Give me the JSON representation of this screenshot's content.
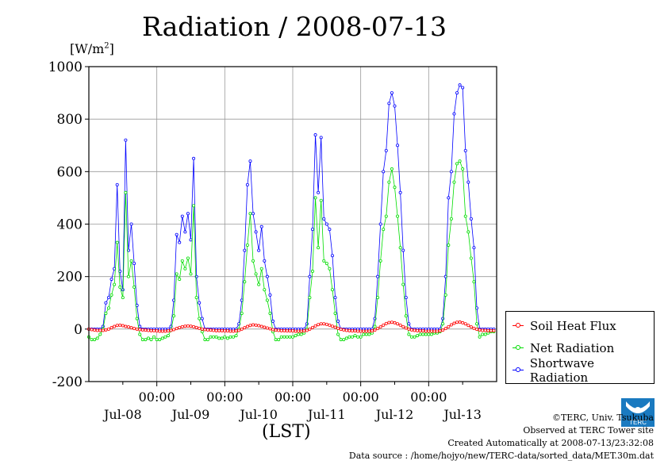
{
  "title": "Radiation / 2008-07-13",
  "unit_label": "[W/m",
  "unit_sup": "2",
  "unit_close": "]",
  "x_axis_title": "(LST)",
  "legend": [
    {
      "label": "Soil Heat Flux",
      "color": "#ff0000"
    },
    {
      "label": "Net Radiation",
      "color": "#00ff00"
    },
    {
      "label": "Shortwave Radiation",
      "color": "#0000ff"
    }
  ],
  "credits": {
    "copyright": "©TERC, Univ. Tsukuba",
    "observed": "Observed at TERC Tower site",
    "created": "Created Automatically at 2008-07-13/23:32:08",
    "source": "Data source : /home/hojyo/new/TERC-data/sorted_data/MET.30m.dat"
  },
  "logo_text": "TERC",
  "chart_data": {
    "type": "line",
    "title": "Radiation / 2008-07-13",
    "ylabel": "[W/m2]",
    "xlabel": "(LST)",
    "ylim": [
      -200,
      1000
    ],
    "yticks": [
      -200,
      0,
      200,
      400,
      600,
      800,
      1000
    ],
    "xlim_days": [
      0,
      6
    ],
    "x_ticks": [
      {
        "pos": 1,
        "label": "00:00"
      },
      {
        "pos": 2,
        "label": "00:00"
      },
      {
        "pos": 3,
        "label": "00:00"
      },
      {
        "pos": 4,
        "label": "00:00"
      },
      {
        "pos": 5,
        "label": "00:00"
      }
    ],
    "day_labels": [
      "Jul-08",
      "Jul-09",
      "Jul-10",
      "Jul-11",
      "Jul-12",
      "Jul-13"
    ],
    "grid": true,
    "legend_position": "outside-right-bottom",
    "series": [
      {
        "name": "Shortwave Radiation",
        "color": "#0000ff",
        "start_day": 0.0,
        "step_hours": 1,
        "values": [
          0,
          0,
          0,
          0,
          0,
          10,
          100,
          120,
          190,
          230,
          550,
          220,
          150,
          720,
          300,
          400,
          250,
          90,
          10,
          0,
          0,
          0,
          0,
          0,
          0,
          0,
          0,
          0,
          0,
          10,
          110,
          360,
          330,
          430,
          370,
          440,
          340,
          650,
          200,
          100,
          40,
          0,
          0,
          0,
          0,
          0,
          0,
          0,
          0,
          0,
          0,
          0,
          0,
          20,
          110,
          300,
          550,
          640,
          440,
          370,
          300,
          390,
          260,
          200,
          130,
          30,
          0,
          0,
          0,
          0,
          0,
          0,
          0,
          0,
          0,
          0,
          0,
          20,
          200,
          380,
          740,
          520,
          730,
          420,
          400,
          380,
          280,
          120,
          30,
          0,
          0,
          0,
          0,
          0,
          0,
          0,
          0,
          0,
          0,
          0,
          0,
          40,
          200,
          400,
          600,
          680,
          860,
          900,
          850,
          700,
          520,
          300,
          120,
          20,
          0,
          0,
          0,
          0,
          0,
          0,
          0,
          0,
          0,
          0,
          0,
          40,
          200,
          500,
          600,
          820,
          900,
          930,
          920,
          680,
          560,
          420,
          310,
          80,
          0,
          0,
          0,
          0,
          0,
          0
        ]
      },
      {
        "name": "Net Radiation",
        "color": "#00ff00",
        "start_day": 0.0,
        "step_hours": 1,
        "values": [
          -30,
          -40,
          -40,
          -35,
          -20,
          0,
          60,
          80,
          130,
          170,
          330,
          160,
          120,
          520,
          200,
          260,
          160,
          40,
          -20,
          -40,
          -40,
          -35,
          -40,
          -30,
          -40,
          -40,
          -35,
          -30,
          -25,
          -5,
          50,
          210,
          190,
          260,
          230,
          270,
          210,
          470,
          120,
          40,
          -10,
          -40,
          -40,
          -30,
          -30,
          -30,
          -35,
          -35,
          -30,
          -35,
          -30,
          -30,
          -25,
          0,
          60,
          180,
          320,
          440,
          260,
          210,
          170,
          230,
          150,
          110,
          60,
          -10,
          -40,
          -40,
          -30,
          -30,
          -30,
          -30,
          -30,
          -25,
          -20,
          -20,
          -15,
          0,
          120,
          220,
          500,
          310,
          490,
          260,
          250,
          230,
          150,
          60,
          -20,
          -40,
          -40,
          -35,
          -30,
          -30,
          -25,
          -30,
          -30,
          -20,
          -20,
          -20,
          -15,
          10,
          120,
          260,
          380,
          430,
          560,
          610,
          540,
          430,
          310,
          170,
          50,
          -20,
          -30,
          -30,
          -25,
          -20,
          -20,
          -20,
          -20,
          -20,
          -15,
          -15,
          -10,
          20,
          130,
          320,
          420,
          560,
          630,
          640,
          610,
          430,
          370,
          270,
          180,
          20,
          -30,
          -20,
          -20,
          -15,
          -10,
          -10
        ]
      },
      {
        "name": "Soil Heat Flux",
        "color": "#ff0000",
        "start_day": 0.0,
        "step_hours": 1,
        "values": [
          0,
          -2,
          -4,
          -5,
          -5,
          -5,
          -3,
          0,
          5,
          10,
          14,
          15,
          13,
          10,
          8,
          5,
          2,
          0,
          -2,
          -3,
          -4,
          -5,
          -6,
          -6,
          -7,
          -8,
          -8,
          -8,
          -7,
          -5,
          -2,
          2,
          6,
          9,
          11,
          12,
          11,
          9,
          6,
          3,
          0,
          -2,
          -3,
          -4,
          -5,
          -6,
          -6,
          -6,
          -7,
          -7,
          -8,
          -8,
          -7,
          -5,
          0,
          5,
          10,
          14,
          16,
          15,
          13,
          10,
          7,
          4,
          1,
          -2,
          -4,
          -5,
          -6,
          -6,
          -7,
          -7,
          -7,
          -8,
          -8,
          -8,
          -7,
          -5,
          0,
          6,
          12,
          17,
          20,
          20,
          18,
          15,
          11,
          7,
          3,
          -1,
          -3,
          -5,
          -6,
          -7,
          -7,
          -8,
          -8,
          -8,
          -8,
          -8,
          -7,
          -4,
          2,
          8,
          15,
          21,
          25,
          26,
          24,
          20,
          15,
          9,
          4,
          0,
          -3,
          -5,
          -6,
          -7,
          -7,
          -8,
          -8,
          -8,
          -8,
          -8,
          -7,
          -4,
          2,
          9,
          16,
          22,
          26,
          27,
          24,
          20,
          14,
          8,
          3,
          -1,
          -3,
          -5,
          -5,
          -6,
          -6,
          -6
        ]
      }
    ]
  }
}
